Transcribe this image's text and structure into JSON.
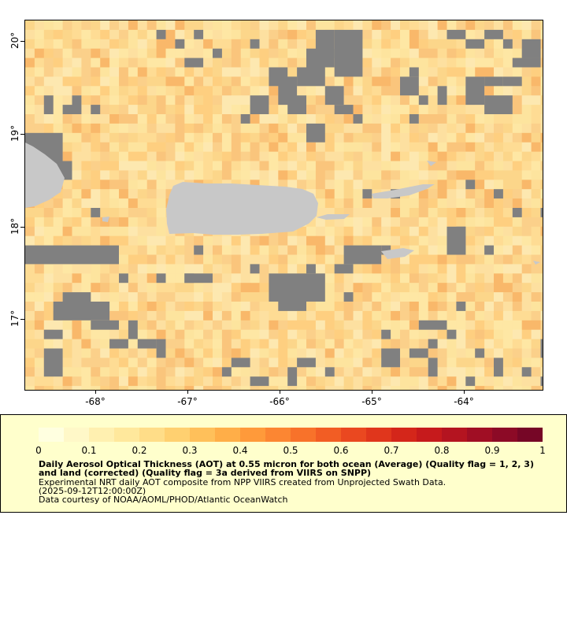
{
  "map": {
    "y_axis_labels": [
      "20°",
      "19°",
      "18°",
      "17°"
    ],
    "x_axis_labels": [
      "-68°",
      "-67°",
      "-66°",
      "-65°",
      "-64°"
    ],
    "colors": {
      "ocean_base": "#fde8a8",
      "no_data": "#808080",
      "land": "#c8c8c8"
    }
  },
  "legend": {
    "scale_labels": [
      "0",
      "0.1",
      "0.2",
      "0.3",
      "0.4",
      "0.5",
      "0.6",
      "0.7",
      "0.8",
      "0.9",
      "1"
    ],
    "title": "Daily Aerosol Optical Thickness (AOT) at 0.55 micron for both ocean (Average) (Quality flag = 1, 2, 3) and land (corrected) (Quality flag = 3a derived from VIIRS on SNPP)",
    "line1": "Experimental NRT daily AOT composite from NPP VIIRS created from Unprojected Swath Data.",
    "line2": "(2025-09-12T12:00:00Z)",
    "line3": "Data courtesy of NOAA/AOML/PHOD/Atlantic OceanWatch",
    "colormap": [
      "#ffffe0",
      "#fff8c8",
      "#fff0b0",
      "#ffe89c",
      "#ffdd88",
      "#ffd070",
      "#ffc05a",
      "#ffae48",
      "#ff9a3a",
      "#fc8632",
      "#f8722a",
      "#f25d24",
      "#ea4820",
      "#e0361c",
      "#d4261a",
      "#c61a1c",
      "#b41420",
      "#a00e24",
      "#8c0a26",
      "#760626"
    ]
  }
}
